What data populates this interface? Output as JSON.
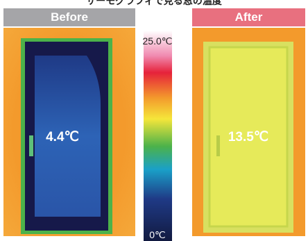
{
  "title": "サーモグラフィで見る窓の温度",
  "before": {
    "label": "Before",
    "temperature": "4.4℃"
  },
  "after": {
    "label": "After",
    "temperature": "13.5℃"
  },
  "scale": {
    "max_label": "25.0℃",
    "min_label": "0℃"
  }
}
